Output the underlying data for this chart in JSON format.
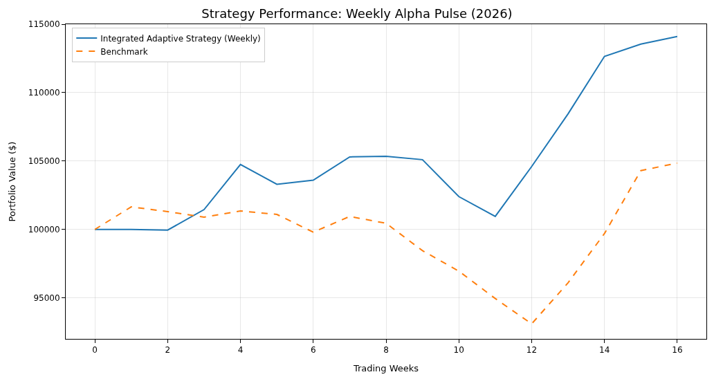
{
  "chart_data": {
    "type": "line",
    "title": "Strategy Performance: Weekly Alpha Pulse (2026)",
    "xlabel": "Trading Weeks",
    "ylabel": "Portfolio Value ($)",
    "x": [
      0,
      1,
      2,
      3,
      4,
      5,
      6,
      7,
      8,
      9,
      10,
      11,
      12,
      13,
      14,
      15,
      16
    ],
    "series": [
      {
        "name": "Integrated Adaptive Strategy (Weekly)",
        "color": "#1f77b4",
        "line_style": "solid",
        "values": [
          100000,
          100000,
          99950,
          101450,
          104750,
          103300,
          103600,
          105300,
          105350,
          105100,
          102400,
          100950,
          104600,
          108450,
          112650,
          113550,
          114100
        ]
      },
      {
        "name": "Benchmark",
        "color": "#ff7f0e",
        "line_style": "dashed",
        "values": [
          100000,
          101650,
          101300,
          100900,
          101350,
          101100,
          99800,
          100950,
          100450,
          98450,
          96950,
          94950,
          93100,
          96100,
          99700,
          104300,
          104850
        ]
      }
    ],
    "xlim": [
      -0.8,
      16.8
    ],
    "ylim": [
      92000,
      115000
    ],
    "xticks": [
      0,
      2,
      4,
      6,
      8,
      10,
      12,
      14,
      16
    ],
    "yticks": [
      95000,
      100000,
      105000,
      110000,
      115000
    ],
    "grid": true,
    "legend": "top left",
    "marker": "none"
  }
}
